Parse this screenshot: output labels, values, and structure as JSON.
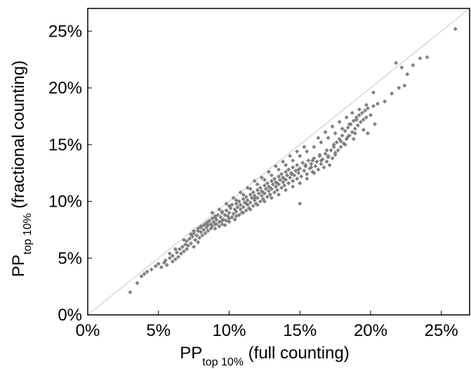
{
  "chart_data": {
    "type": "scatter",
    "title": "",
    "xlabel": {
      "main": "PP",
      "sub": "top 10%",
      "suffix": " (full counting)"
    },
    "ylabel": {
      "main": "PP",
      "sub": "top 10%",
      "suffix": " (fractional counting)"
    },
    "xlim": [
      0,
      0.27
    ],
    "ylim": [
      0,
      0.27
    ],
    "x_ticks": [
      {
        "value": 0,
        "label": "0%"
      },
      {
        "value": 0.05,
        "label": "5%"
      },
      {
        "value": 0.1,
        "label": "10%"
      },
      {
        "value": 0.15,
        "label": "15%"
      },
      {
        "value": 0.2,
        "label": "20%"
      },
      {
        "value": 0.25,
        "label": "25%"
      }
    ],
    "y_ticks": [
      {
        "value": 0,
        "label": "0%"
      },
      {
        "value": 0.05,
        "label": "5%"
      },
      {
        "value": 0.1,
        "label": "10%"
      },
      {
        "value": 0.15,
        "label": "15%"
      },
      {
        "value": 0.2,
        "label": "20%"
      },
      {
        "value": 0.25,
        "label": "25%"
      }
    ],
    "grid": false,
    "reference_line": {
      "from": [
        0,
        0
      ],
      "to": [
        0.27,
        0.27
      ],
      "color": "#c8c8c8"
    },
    "marker_color": "#808080",
    "points": [
      [
        0.03,
        0.02
      ],
      [
        0.035,
        0.028
      ],
      [
        0.038,
        0.034
      ],
      [
        0.04,
        0.036
      ],
      [
        0.042,
        0.038
      ],
      [
        0.045,
        0.04
      ],
      [
        0.048,
        0.043
      ],
      [
        0.05,
        0.045
      ],
      [
        0.052,
        0.042
      ],
      [
        0.054,
        0.046
      ],
      [
        0.055,
        0.048
      ],
      [
        0.056,
        0.044
      ],
      [
        0.058,
        0.05
      ],
      [
        0.06,
        0.047
      ],
      [
        0.06,
        0.052
      ],
      [
        0.062,
        0.049
      ],
      [
        0.063,
        0.055
      ],
      [
        0.064,
        0.051
      ],
      [
        0.065,
        0.058
      ],
      [
        0.066,
        0.054
      ],
      [
        0.067,
        0.06
      ],
      [
        0.068,
        0.056
      ],
      [
        0.069,
        0.062
      ],
      [
        0.07,
        0.058
      ],
      [
        0.07,
        0.065
      ],
      [
        0.071,
        0.061
      ],
      [
        0.072,
        0.067
      ],
      [
        0.073,
        0.063
      ],
      [
        0.074,
        0.069
      ],
      [
        0.075,
        0.06
      ],
      [
        0.075,
        0.072
      ],
      [
        0.076,
        0.066
      ],
      [
        0.077,
        0.07
      ],
      [
        0.078,
        0.064
      ],
      [
        0.078,
        0.074
      ],
      [
        0.079,
        0.068
      ],
      [
        0.08,
        0.073
      ],
      [
        0.08,
        0.077
      ],
      [
        0.081,
        0.07
      ],
      [
        0.082,
        0.075
      ],
      [
        0.082,
        0.079
      ],
      [
        0.083,
        0.072
      ],
      [
        0.084,
        0.077
      ],
      [
        0.084,
        0.081
      ],
      [
        0.085,
        0.074
      ],
      [
        0.085,
        0.079
      ],
      [
        0.086,
        0.083
      ],
      [
        0.087,
        0.076
      ],
      [
        0.087,
        0.08
      ],
      [
        0.088,
        0.085
      ],
      [
        0.088,
        0.078
      ],
      [
        0.089,
        0.082
      ],
      [
        0.09,
        0.076
      ],
      [
        0.09,
        0.086
      ],
      [
        0.091,
        0.08
      ],
      [
        0.091,
        0.084
      ],
      [
        0.092,
        0.088
      ],
      [
        0.093,
        0.078
      ],
      [
        0.093,
        0.082
      ],
      [
        0.094,
        0.086
      ],
      [
        0.095,
        0.08
      ],
      [
        0.095,
        0.09
      ],
      [
        0.096,
        0.084
      ],
      [
        0.097,
        0.088
      ],
      [
        0.097,
        0.079
      ],
      [
        0.098,
        0.092
      ],
      [
        0.098,
        0.083
      ],
      [
        0.099,
        0.087
      ],
      [
        0.1,
        0.09
      ],
      [
        0.1,
        0.082
      ],
      [
        0.101,
        0.094
      ],
      [
        0.102,
        0.086
      ],
      [
        0.102,
        0.097
      ],
      [
        0.103,
        0.089
      ],
      [
        0.104,
        0.093
      ],
      [
        0.104,
        0.084
      ],
      [
        0.105,
        0.098
      ],
      [
        0.105,
        0.091
      ],
      [
        0.106,
        0.095
      ],
      [
        0.107,
        0.088
      ],
      [
        0.107,
        0.1
      ],
      [
        0.108,
        0.093
      ],
      [
        0.108,
        0.097
      ],
      [
        0.109,
        0.09
      ],
      [
        0.11,
        0.102
      ],
      [
        0.11,
        0.095
      ],
      [
        0.111,
        0.099
      ],
      [
        0.112,
        0.092
      ],
      [
        0.112,
        0.104
      ],
      [
        0.113,
        0.097
      ],
      [
        0.113,
        0.101
      ],
      [
        0.114,
        0.094
      ],
      [
        0.115,
        0.106
      ],
      [
        0.115,
        0.099
      ],
      [
        0.116,
        0.103
      ],
      [
        0.117,
        0.096
      ],
      [
        0.117,
        0.108
      ],
      [
        0.118,
        0.101
      ],
      [
        0.118,
        0.105
      ],
      [
        0.119,
        0.098
      ],
      [
        0.12,
        0.11
      ],
      [
        0.12,
        0.103
      ],
      [
        0.121,
        0.107
      ],
      [
        0.122,
        0.1
      ],
      [
        0.122,
        0.112
      ],
      [
        0.123,
        0.105
      ],
      [
        0.123,
        0.109
      ],
      [
        0.124,
        0.102
      ],
      [
        0.125,
        0.114
      ],
      [
        0.125,
        0.107
      ],
      [
        0.126,
        0.111
      ],
      [
        0.127,
        0.104
      ],
      [
        0.127,
        0.116
      ],
      [
        0.128,
        0.109
      ],
      [
        0.128,
        0.113
      ],
      [
        0.129,
        0.106
      ],
      [
        0.13,
        0.118
      ],
      [
        0.13,
        0.111
      ],
      [
        0.131,
        0.115
      ],
      [
        0.132,
        0.108
      ],
      [
        0.132,
        0.12
      ],
      [
        0.133,
        0.113
      ],
      [
        0.133,
        0.117
      ],
      [
        0.134,
        0.11
      ],
      [
        0.135,
        0.122
      ],
      [
        0.135,
        0.115
      ],
      [
        0.136,
        0.119
      ],
      [
        0.137,
        0.112
      ],
      [
        0.137,
        0.124
      ],
      [
        0.138,
        0.117
      ],
      [
        0.138,
        0.121
      ],
      [
        0.139,
        0.114
      ],
      [
        0.14,
        0.126
      ],
      [
        0.14,
        0.119
      ],
      [
        0.141,
        0.123
      ],
      [
        0.142,
        0.116
      ],
      [
        0.142,
        0.128
      ],
      [
        0.143,
        0.121
      ],
      [
        0.144,
        0.125
      ],
      [
        0.145,
        0.118
      ],
      [
        0.145,
        0.13
      ],
      [
        0.146,
        0.123
      ],
      [
        0.147,
        0.127
      ],
      [
        0.148,
        0.12
      ],
      [
        0.148,
        0.132
      ],
      [
        0.149,
        0.125
      ],
      [
        0.15,
        0.129
      ],
      [
        0.151,
        0.122
      ],
      [
        0.152,
        0.134
      ],
      [
        0.153,
        0.127
      ],
      [
        0.154,
        0.131
      ],
      [
        0.155,
        0.124
      ],
      [
        0.156,
        0.136
      ],
      [
        0.157,
        0.129
      ],
      [
        0.158,
        0.133
      ],
      [
        0.159,
        0.126
      ],
      [
        0.16,
        0.138
      ],
      [
        0.161,
        0.131
      ],
      [
        0.162,
        0.135
      ],
      [
        0.163,
        0.128
      ],
      [
        0.164,
        0.14
      ],
      [
        0.165,
        0.133
      ],
      [
        0.166,
        0.137
      ],
      [
        0.167,
        0.13
      ],
      [
        0.168,
        0.142
      ],
      [
        0.169,
        0.135
      ],
      [
        0.17,
        0.139
      ],
      [
        0.171,
        0.132
      ],
      [
        0.172,
        0.145
      ],
      [
        0.173,
        0.138
      ],
      [
        0.174,
        0.148
      ],
      [
        0.175,
        0.141
      ],
      [
        0.176,
        0.152
      ],
      [
        0.177,
        0.145
      ],
      [
        0.178,
        0.155
      ],
      [
        0.179,
        0.148
      ],
      [
        0.18,
        0.158
      ],
      [
        0.181,
        0.151
      ],
      [
        0.182,
        0.162
      ],
      [
        0.183,
        0.155
      ],
      [
        0.184,
        0.165
      ],
      [
        0.185,
        0.158
      ],
      [
        0.186,
        0.168
      ],
      [
        0.187,
        0.161
      ],
      [
        0.188,
        0.171
      ],
      [
        0.189,
        0.164
      ],
      [
        0.19,
        0.174
      ],
      [
        0.191,
        0.167
      ],
      [
        0.192,
        0.176
      ],
      [
        0.193,
        0.17
      ],
      [
        0.194,
        0.178
      ],
      [
        0.195,
        0.172
      ],
      [
        0.196,
        0.18
      ],
      [
        0.197,
        0.174
      ],
      [
        0.198,
        0.182
      ],
      [
        0.2,
        0.176
      ],
      [
        0.202,
        0.184
      ],
      [
        0.205,
        0.186
      ],
      [
        0.21,
        0.188
      ],
      [
        0.215,
        0.195
      ],
      [
        0.22,
        0.2
      ],
      [
        0.224,
        0.202
      ],
      [
        0.226,
        0.212
      ],
      [
        0.218,
        0.222
      ],
      [
        0.222,
        0.218
      ],
      [
        0.23,
        0.22
      ],
      [
        0.235,
        0.226
      ],
      [
        0.24,
        0.227
      ],
      [
        0.26,
        0.252
      ],
      [
        0.11,
        0.106
      ],
      [
        0.115,
        0.111
      ],
      [
        0.12,
        0.115
      ],
      [
        0.125,
        0.119
      ],
      [
        0.13,
        0.123
      ],
      [
        0.135,
        0.128
      ],
      [
        0.14,
        0.132
      ],
      [
        0.145,
        0.136
      ],
      [
        0.15,
        0.14
      ],
      [
        0.155,
        0.144
      ],
      [
        0.16,
        0.148
      ],
      [
        0.165,
        0.152
      ],
      [
        0.17,
        0.156
      ],
      [
        0.175,
        0.16
      ],
      [
        0.18,
        0.164
      ],
      [
        0.185,
        0.168
      ],
      [
        0.19,
        0.172
      ],
      [
        0.1,
        0.096
      ],
      [
        0.105,
        0.101
      ],
      [
        0.095,
        0.091
      ],
      [
        0.09,
        0.087
      ],
      [
        0.085,
        0.082
      ],
      [
        0.08,
        0.078
      ],
      [
        0.075,
        0.074
      ],
      [
        0.155,
        0.12
      ],
      [
        0.16,
        0.125
      ],
      [
        0.15,
        0.116
      ],
      [
        0.145,
        0.113
      ],
      [
        0.14,
        0.11
      ],
      [
        0.135,
        0.106
      ],
      [
        0.13,
        0.103
      ],
      [
        0.125,
        0.1
      ],
      [
        0.12,
        0.097
      ],
      [
        0.115,
        0.093
      ],
      [
        0.11,
        0.09
      ],
      [
        0.105,
        0.087
      ],
      [
        0.1,
        0.085
      ],
      [
        0.095,
        0.083
      ],
      [
        0.09,
        0.08
      ],
      [
        0.175,
        0.143
      ],
      [
        0.182,
        0.15
      ],
      [
        0.188,
        0.155
      ],
      [
        0.195,
        0.163
      ],
      [
        0.203,
        0.168
      ],
      [
        0.198,
        0.16
      ],
      [
        0.17,
        0.14
      ],
      [
        0.165,
        0.136
      ],
      [
        0.158,
        0.13
      ],
      [
        0.062,
        0.058
      ],
      [
        0.068,
        0.066
      ],
      [
        0.058,
        0.054
      ],
      [
        0.073,
        0.071
      ],
      [
        0.078,
        0.076
      ],
      [
        0.083,
        0.08
      ],
      [
        0.088,
        0.09
      ],
      [
        0.093,
        0.093
      ],
      [
        0.098,
        0.098
      ],
      [
        0.103,
        0.103
      ],
      [
        0.108,
        0.108
      ],
      [
        0.113,
        0.112
      ],
      [
        0.118,
        0.118
      ],
      [
        0.123,
        0.121
      ],
      [
        0.128,
        0.126
      ],
      [
        0.133,
        0.131
      ],
      [
        0.138,
        0.135
      ],
      [
        0.143,
        0.14
      ],
      [
        0.148,
        0.144
      ],
      [
        0.153,
        0.148
      ],
      [
        0.163,
        0.156
      ],
      [
        0.168,
        0.161
      ],
      [
        0.173,
        0.166
      ],
      [
        0.178,
        0.17
      ],
      [
        0.183,
        0.174
      ],
      [
        0.187,
        0.178
      ],
      [
        0.192,
        0.181
      ],
      [
        0.197,
        0.185
      ],
      [
        0.112,
        0.098
      ],
      [
        0.118,
        0.103
      ],
      [
        0.124,
        0.108
      ],
      [
        0.129,
        0.112
      ],
      [
        0.134,
        0.116
      ],
      [
        0.139,
        0.12
      ],
      [
        0.144,
        0.124
      ],
      [
        0.149,
        0.128
      ],
      [
        0.154,
        0.132
      ],
      [
        0.159,
        0.136
      ],
      [
        0.164,
        0.141
      ],
      [
        0.169,
        0.145
      ],
      [
        0.174,
        0.15
      ],
      [
        0.179,
        0.153
      ],
      [
        0.184,
        0.157
      ],
      [
        0.189,
        0.16
      ],
      [
        0.15,
        0.098
      ],
      [
        0.202,
        0.196
      ]
    ]
  }
}
